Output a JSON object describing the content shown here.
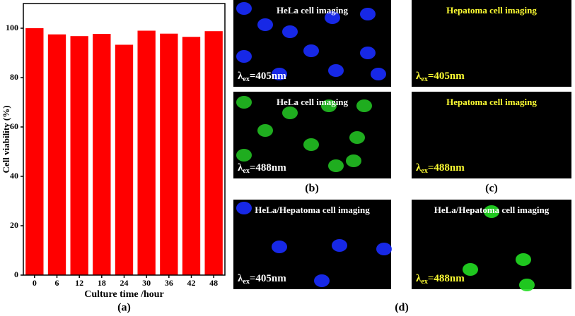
{
  "chart_data": {
    "type": "bar",
    "categories": [
      "0",
      "6",
      "12",
      "18",
      "24",
      "30",
      "36",
      "42",
      "48"
    ],
    "values": [
      100,
      97.5,
      96.8,
      97.7,
      93.3,
      99,
      97.8,
      96.5,
      98.8
    ],
    "color": "#ff0000",
    "ylim": [
      0,
      110
    ],
    "yticks": [
      0,
      20,
      40,
      60,
      80,
      100
    ],
    "xlabel": "Culture time /hour",
    "ylabel": "Cell viability (%)",
    "caption": "(a)"
  },
  "images": [
    {
      "title": "HeLa cell imaging",
      "lambda": "λ",
      "sub": "ex",
      "rest": "=405nm"
    },
    {
      "title": "HeLa cell imaging",
      "lambda": "λ",
      "sub": "ex",
      "rest": "=488nm"
    },
    {
      "title": "Hepatoma cell imaging",
      "lambda": "λ",
      "sub": "ex",
      "rest": "=405nm"
    },
    {
      "title": "Hepatoma cell imaging",
      "lambda": "λ",
      "sub": "ex",
      "rest": "=488nm"
    },
    {
      "title": "HeLa/Hepatoma cell imaging",
      "lambda": "λ",
      "sub": "ex",
      "rest": "=405nm"
    },
    {
      "title": "HeLa/Hepatoma cell imaging",
      "lambda": "λ",
      "sub": "ex",
      "rest": "=488nm"
    }
  ],
  "captions": [
    "(b)",
    "(c)",
    "(d)"
  ]
}
